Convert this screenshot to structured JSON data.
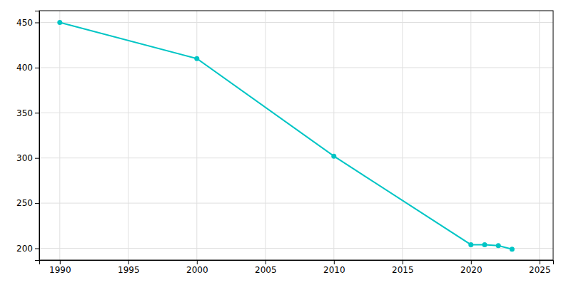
{
  "chart_data": {
    "type": "line",
    "x": [
      1990,
      2000,
      2010,
      2020,
      2021,
      2022,
      2023
    ],
    "values": [
      450,
      410,
      302,
      204,
      204,
      203,
      199
    ],
    "color": "#00C5C5",
    "marker": "circle",
    "xlim": [
      1988.5,
      2026
    ],
    "ylim": [
      187,
      463
    ],
    "xticks": [
      1990,
      1995,
      2000,
      2005,
      2010,
      2015,
      2020,
      2025
    ],
    "yticks": [
      200,
      250,
      300,
      350,
      400,
      450
    ],
    "grid": true
  }
}
